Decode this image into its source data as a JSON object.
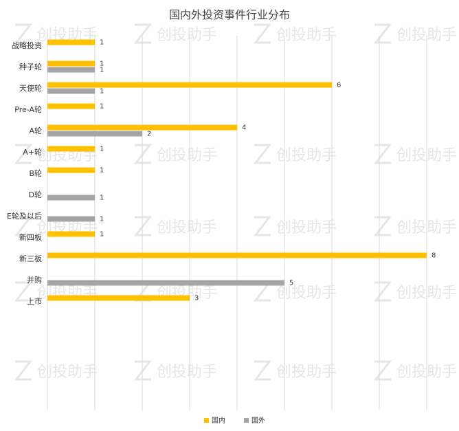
{
  "watermark": {
    "text": "创投助手",
    "logo_icon": "z-logo-icon"
  },
  "chart_data": {
    "type": "bar",
    "orientation": "horizontal",
    "title": "国内外投资事件行业分布",
    "categories": [
      "战略投资",
      "种子轮",
      "天使轮",
      "Pre-A轮",
      "A轮",
      "A+轮",
      "B轮",
      "D轮",
      "E轮及以后",
      "新四板",
      "新三板",
      "并购",
      "上市"
    ],
    "series": [
      {
        "name": "国内",
        "color": "#FFC000",
        "values": [
          1,
          1,
          6,
          1,
          4,
          1,
          1,
          null,
          null,
          1,
          8,
          null,
          3
        ]
      },
      {
        "name": "国外",
        "color": "#A5A5A5",
        "values": [
          null,
          1,
          1,
          null,
          2,
          null,
          null,
          1,
          1,
          null,
          null,
          5,
          null
        ]
      }
    ],
    "xlim": [
      0,
      8
    ],
    "grid": true,
    "legend_position": "bottom"
  }
}
